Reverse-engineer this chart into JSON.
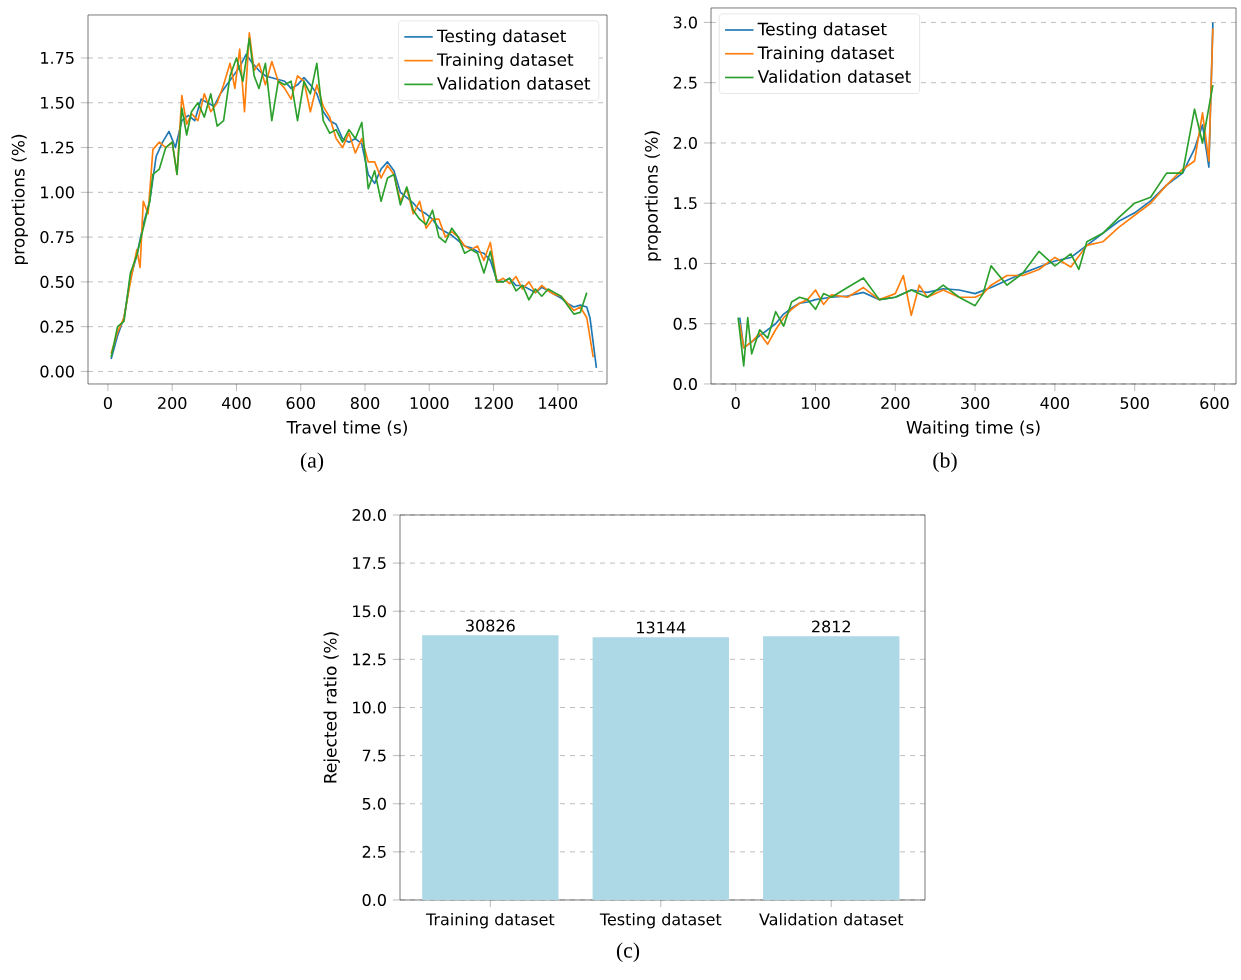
{
  "chart_data": [
    {
      "type": "line",
      "xlabel": "Travel time (s)",
      "ylabel": "proportions (%)",
      "annotations": [
        "(a)"
      ],
      "grid": "y",
      "legend": "top right",
      "xlim": [
        -62,
        1553
      ],
      "ylim": [
        -0.07,
        1.99
      ],
      "xticks": [
        0,
        200,
        400,
        600,
        800,
        1000,
        1200,
        1400
      ],
      "yticks": [
        {
          "value": 0,
          "label": "0.00"
        },
        {
          "value": 0.25,
          "label": "0.25"
        },
        {
          "value": 0.5,
          "label": "0.50"
        },
        {
          "value": 0.75,
          "label": "0.75"
        },
        {
          "value": 1,
          "label": "1.00"
        },
        {
          "value": 1.25,
          "label": "1.25"
        },
        {
          "value": 1.5,
          "label": "1.50"
        },
        {
          "value": 1.75,
          "label": "1.75"
        }
      ],
      "series": [
        {
          "name": "Testing dataset",
          "color": "#1f77b4",
          "x": [
            10,
            30,
            50,
            70,
            90,
            110,
            130,
            150,
            170,
            190,
            210,
            230,
            250,
            270,
            290,
            310,
            330,
            350,
            370,
            390,
            410,
            430,
            450,
            470,
            490,
            510,
            530,
            550,
            570,
            590,
            610,
            630,
            650,
            670,
            690,
            710,
            730,
            750,
            770,
            790,
            810,
            830,
            850,
            870,
            890,
            910,
            930,
            950,
            970,
            990,
            1010,
            1030,
            1050,
            1070,
            1090,
            1110,
            1130,
            1150,
            1170,
            1190,
            1210,
            1230,
            1250,
            1270,
            1290,
            1310,
            1330,
            1350,
            1370,
            1390,
            1410,
            1430,
            1450,
            1470,
            1490,
            1500,
            1520
          ],
          "values": [
            0.07,
            0.2,
            0.3,
            0.52,
            0.65,
            0.82,
            0.95,
            1.2,
            1.28,
            1.34,
            1.25,
            1.4,
            1.43,
            1.4,
            1.52,
            1.5,
            1.48,
            1.55,
            1.6,
            1.65,
            1.7,
            1.77,
            1.72,
            1.68,
            1.65,
            1.64,
            1.63,
            1.62,
            1.58,
            1.6,
            1.64,
            1.6,
            1.55,
            1.45,
            1.4,
            1.38,
            1.3,
            1.28,
            1.3,
            1.27,
            1.1,
            1.05,
            1.13,
            1.17,
            1.12,
            1.0,
            0.97,
            0.94,
            0.9,
            0.88,
            0.85,
            0.8,
            0.78,
            0.76,
            0.73,
            0.7,
            0.69,
            0.67,
            0.66,
            0.62,
            0.51,
            0.5,
            0.52,
            0.48,
            0.48,
            0.46,
            0.44,
            0.47,
            0.45,
            0.43,
            0.41,
            0.38,
            0.36,
            0.37,
            0.36,
            0.3,
            0.02
          ]
        },
        {
          "name": "Training dataset",
          "color": "#ff7f0e",
          "x": [
            10,
            30,
            50,
            70,
            90,
            100,
            110,
            125,
            140,
            160,
            180,
            200,
            215,
            230,
            245,
            260,
            280,
            300,
            320,
            340,
            360,
            380,
            395,
            410,
            425,
            440,
            455,
            470,
            490,
            510,
            530,
            550,
            570,
            590,
            610,
            630,
            650,
            670,
            690,
            710,
            730,
            750,
            770,
            790,
            810,
            830,
            850,
            870,
            890,
            910,
            930,
            950,
            970,
            990,
            1010,
            1030,
            1050,
            1070,
            1090,
            1110,
            1130,
            1150,
            1170,
            1190,
            1210,
            1230,
            1250,
            1270,
            1290,
            1310,
            1330,
            1350,
            1370,
            1390,
            1410,
            1430,
            1450,
            1470,
            1490,
            1510
          ],
          "values": [
            0.1,
            0.22,
            0.3,
            0.5,
            0.68,
            0.58,
            0.95,
            0.88,
            1.24,
            1.28,
            1.25,
            1.28,
            1.1,
            1.54,
            1.38,
            1.44,
            1.4,
            1.55,
            1.45,
            1.5,
            1.6,
            1.72,
            1.58,
            1.8,
            1.45,
            1.89,
            1.68,
            1.72,
            1.6,
            1.73,
            1.62,
            1.58,
            1.52,
            1.65,
            1.62,
            1.45,
            1.6,
            1.48,
            1.42,
            1.3,
            1.25,
            1.33,
            1.22,
            1.3,
            1.17,
            1.17,
            1.08,
            1.15,
            1.1,
            0.95,
            1.02,
            0.88,
            0.95,
            0.8,
            0.85,
            0.85,
            0.75,
            0.78,
            0.75,
            0.7,
            0.68,
            0.7,
            0.62,
            0.72,
            0.5,
            0.52,
            0.49,
            0.53,
            0.46,
            0.5,
            0.44,
            0.48,
            0.45,
            0.43,
            0.42,
            0.38,
            0.34,
            0.36,
            0.3,
            0.08
          ]
        },
        {
          "name": "Validation dataset",
          "color": "#2ca02c",
          "x": [
            10,
            30,
            50,
            70,
            90,
            110,
            130,
            140,
            160,
            180,
            200,
            215,
            230,
            245,
            260,
            280,
            300,
            320,
            340,
            360,
            380,
            400,
            420,
            440,
            455,
            470,
            490,
            510,
            530,
            550,
            570,
            590,
            610,
            630,
            650,
            670,
            690,
            710,
            730,
            750,
            770,
            790,
            810,
            830,
            850,
            870,
            890,
            910,
            930,
            950,
            970,
            990,
            1010,
            1030,
            1050,
            1070,
            1090,
            1110,
            1130,
            1150,
            1170,
            1190,
            1210,
            1230,
            1250,
            1270,
            1290,
            1310,
            1330,
            1350,
            1370,
            1390,
            1410,
            1430,
            1450,
            1470,
            1490
          ],
          "values": [
            0.08,
            0.25,
            0.28,
            0.55,
            0.65,
            0.8,
            0.95,
            1.1,
            1.13,
            1.25,
            1.28,
            1.1,
            1.47,
            1.32,
            1.45,
            1.5,
            1.42,
            1.55,
            1.37,
            1.4,
            1.65,
            1.75,
            1.62,
            1.86,
            1.65,
            1.58,
            1.72,
            1.4,
            1.62,
            1.6,
            1.62,
            1.4,
            1.62,
            1.55,
            1.72,
            1.4,
            1.33,
            1.35,
            1.28,
            1.35,
            1.3,
            1.39,
            1.02,
            1.12,
            0.95,
            1.08,
            1.1,
            0.93,
            1.03,
            0.9,
            0.85,
            0.82,
            0.9,
            0.75,
            0.72,
            0.8,
            0.75,
            0.66,
            0.68,
            0.66,
            0.55,
            0.67,
            0.5,
            0.5,
            0.52,
            0.45,
            0.48,
            0.4,
            0.46,
            0.42,
            0.46,
            0.44,
            0.42,
            0.37,
            0.32,
            0.33,
            0.44
          ]
        }
      ]
    },
    {
      "type": "line",
      "xlabel": "Waiting time (s)",
      "ylabel": "proportions (%)",
      "annotations": [
        "(b)"
      ],
      "grid": "y",
      "legend": "top left",
      "xlim": [
        -31,
        627
      ],
      "ylim": [
        0,
        3.12
      ],
      "xticks": [
        0,
        100,
        200,
        300,
        400,
        500,
        600
      ],
      "yticks": [
        {
          "value": 0,
          "label": "0.0"
        },
        {
          "value": 0.5,
          "label": "0.5"
        },
        {
          "value": 1,
          "label": "1.0"
        },
        {
          "value": 1.5,
          "label": "1.5"
        },
        {
          "value": 2,
          "label": "2.0"
        },
        {
          "value": 2.5,
          "label": "2.5"
        },
        {
          "value": 3,
          "label": "3.0"
        }
      ],
      "series": [
        {
          "name": "Testing dataset",
          "color": "#1f77b4",
          "x": [
            5,
            10,
            20,
            30,
            40,
            50,
            60,
            70,
            80,
            90,
            100,
            120,
            140,
            160,
            180,
            200,
            220,
            240,
            260,
            280,
            300,
            320,
            340,
            360,
            380,
            400,
            420,
            440,
            460,
            480,
            500,
            520,
            540,
            560,
            575,
            585,
            593,
            598
          ],
          "values": [
            0.55,
            0.3,
            0.35,
            0.4,
            0.45,
            0.5,
            0.58,
            0.63,
            0.67,
            0.68,
            0.7,
            0.72,
            0.73,
            0.76,
            0.7,
            0.72,
            0.78,
            0.76,
            0.79,
            0.78,
            0.75,
            0.8,
            0.86,
            0.92,
            0.97,
            1.02,
            1.05,
            1.15,
            1.25,
            1.35,
            1.42,
            1.52,
            1.65,
            1.75,
            1.95,
            2.15,
            1.8,
            3.0
          ]
        },
        {
          "name": "Training dataset",
          "color": "#ff7f0e",
          "x": [
            5,
            10,
            20,
            30,
            40,
            50,
            60,
            70,
            80,
            90,
            100,
            110,
            120,
            140,
            160,
            180,
            200,
            210,
            220,
            230,
            240,
            260,
            280,
            300,
            310,
            320,
            340,
            360,
            380,
            400,
            420,
            440,
            460,
            480,
            500,
            520,
            540,
            560,
            575,
            585,
            593,
            598
          ],
          "values": [
            0.5,
            0.3,
            0.35,
            0.42,
            0.33,
            0.45,
            0.55,
            0.62,
            0.67,
            0.7,
            0.78,
            0.66,
            0.74,
            0.72,
            0.8,
            0.7,
            0.75,
            0.9,
            0.57,
            0.82,
            0.72,
            0.78,
            0.72,
            0.72,
            0.75,
            0.82,
            0.9,
            0.9,
            0.95,
            1.05,
            0.97,
            1.15,
            1.18,
            1.3,
            1.4,
            1.5,
            1.65,
            1.78,
            1.85,
            2.25,
            1.85,
            2.95
          ]
        },
        {
          "name": "Validation dataset",
          "color": "#2ca02c",
          "x": [
            3,
            10,
            15,
            20,
            30,
            40,
            50,
            60,
            70,
            80,
            90,
            100,
            110,
            120,
            140,
            160,
            180,
            200,
            220,
            240,
            260,
            280,
            300,
            310,
            320,
            340,
            360,
            380,
            400,
            420,
            430,
            440,
            460,
            480,
            500,
            520,
            540,
            560,
            575,
            585,
            598
          ],
          "values": [
            0.55,
            0.15,
            0.55,
            0.25,
            0.45,
            0.38,
            0.6,
            0.48,
            0.68,
            0.72,
            0.7,
            0.62,
            0.75,
            0.72,
            0.8,
            0.88,
            0.7,
            0.72,
            0.78,
            0.72,
            0.82,
            0.72,
            0.65,
            0.75,
            0.98,
            0.82,
            0.92,
            1.1,
            0.98,
            1.08,
            0.95,
            1.18,
            1.25,
            1.38,
            1.5,
            1.55,
            1.75,
            1.75,
            2.28,
            2.0,
            2.48
          ]
        }
      ]
    },
    {
      "type": "bar",
      "ylabel": "Rejected ratio (%)",
      "annotations": [
        "(c)",
        {
          "text": "30826",
          "x": "Training dataset",
          "y": 13.75
        },
        {
          "text": "13144",
          "x": "Testing dataset",
          "y": 13.65
        },
        {
          "text": "2812",
          "x": "Validation dataset",
          "y": 13.7
        }
      ],
      "grid": "y",
      "categories": [
        "Training dataset",
        "Testing dataset",
        "Validation dataset"
      ],
      "values": [
        13.75,
        13.65,
        13.7
      ],
      "color": "#add8e6",
      "ylim": [
        0,
        20
      ],
      "yticks": [
        {
          "value": 0,
          "label": "0.0"
        },
        {
          "value": 2.5,
          "label": "2.5"
        },
        {
          "value": 5,
          "label": "5.0"
        },
        {
          "value": 7.5,
          "label": "7.5"
        },
        {
          "value": 10,
          "label": "10.0"
        },
        {
          "value": 12.5,
          "label": "12.5"
        },
        {
          "value": 15,
          "label": "15.0"
        },
        {
          "value": 17.5,
          "label": "17.5"
        },
        {
          "value": 20,
          "label": "20.0"
        }
      ]
    }
  ]
}
